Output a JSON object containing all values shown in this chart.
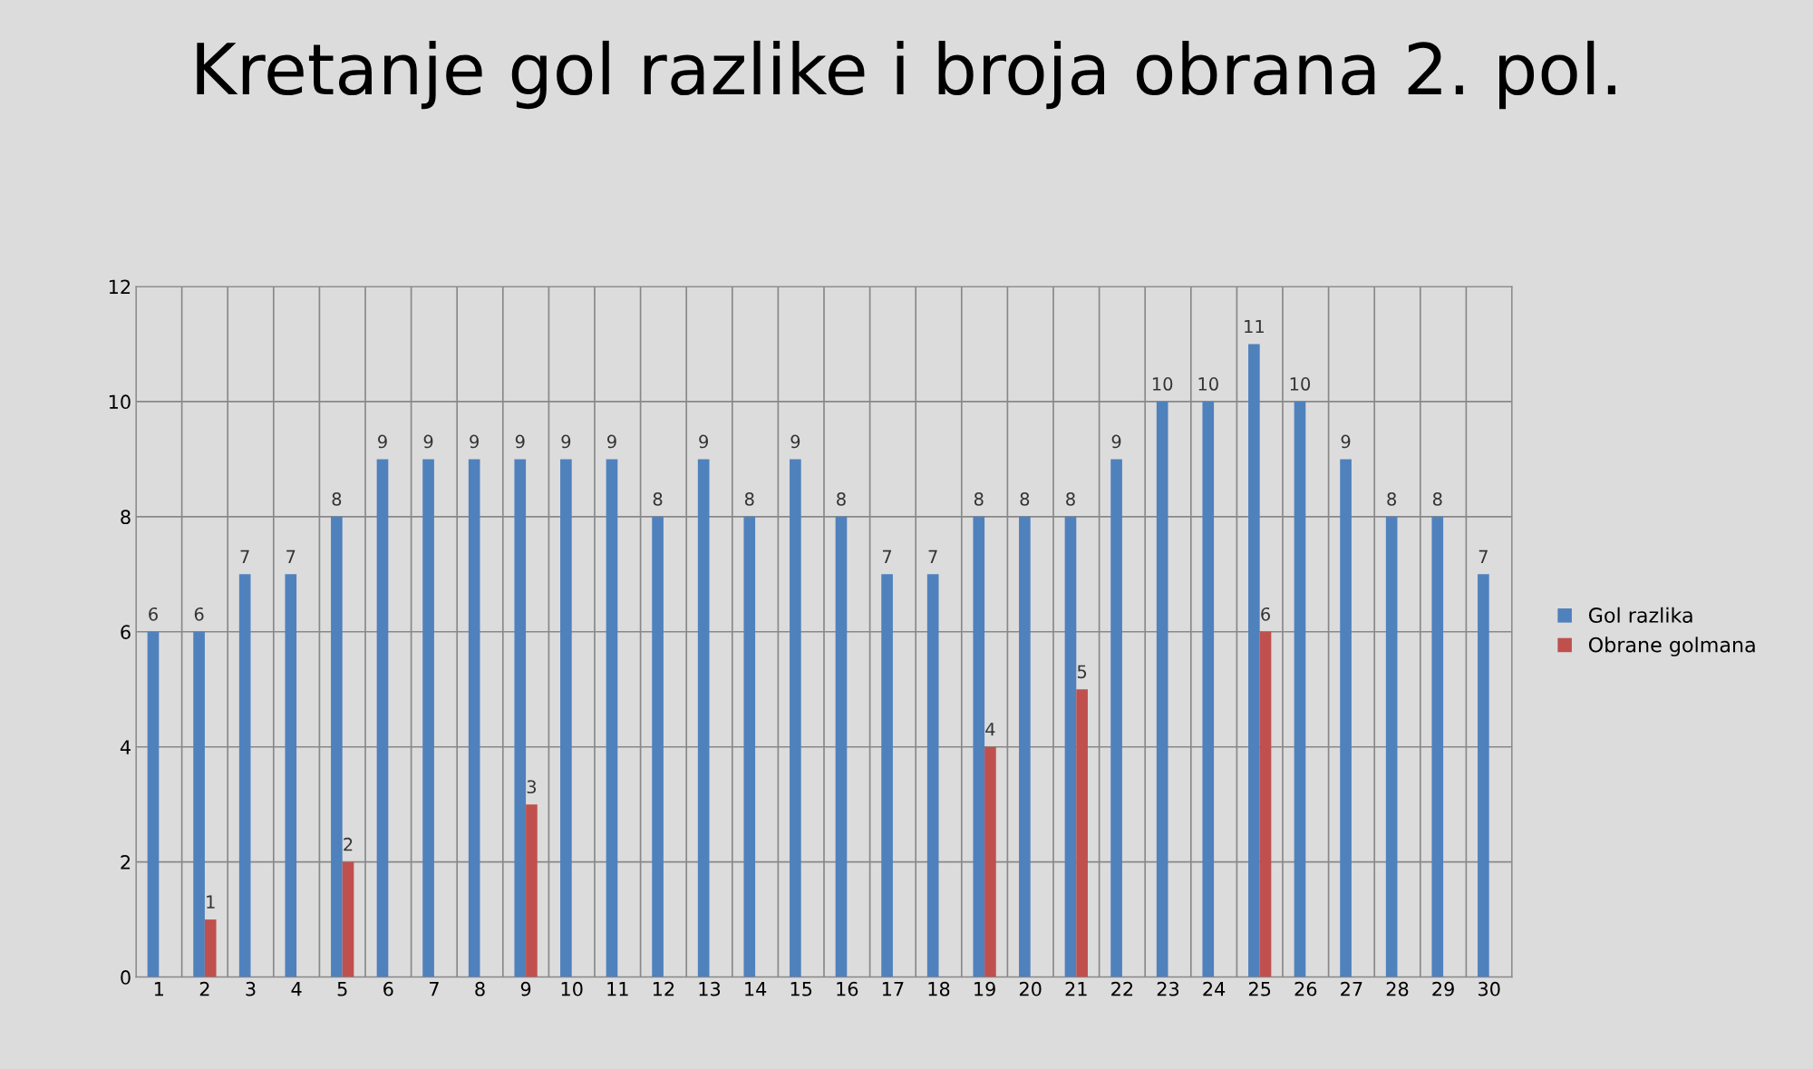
{
  "chart_data": {
    "type": "bar",
    "title": "Kretanje gol razlike i broja obrana 2. pol.",
    "categories": [
      "1",
      "2",
      "3",
      "4",
      "5",
      "6",
      "7",
      "8",
      "9",
      "10",
      "11",
      "12",
      "13",
      "14",
      "15",
      "16",
      "17",
      "18",
      "19",
      "20",
      "21",
      "22",
      "23",
      "24",
      "25",
      "26",
      "27",
      "28",
      "29",
      "30"
    ],
    "series": [
      {
        "name": "Gol razlika",
        "color": "#4f81bd",
        "values": [
          6,
          6,
          7,
          7,
          8,
          9,
          9,
          9,
          9,
          9,
          9,
          8,
          9,
          8,
          9,
          8,
          7,
          7,
          8,
          8,
          8,
          9,
          10,
          10,
          11,
          10,
          9,
          8,
          8,
          7
        ]
      },
      {
        "name": "Obrane golmana",
        "color": "#c0504d",
        "values": [
          null,
          1,
          null,
          null,
          2,
          null,
          null,
          null,
          3,
          null,
          null,
          null,
          null,
          null,
          null,
          null,
          null,
          null,
          4,
          null,
          5,
          null,
          null,
          null,
          6,
          null,
          null,
          null,
          null,
          null
        ]
      }
    ],
    "ylim": [
      0,
      12
    ],
    "yticks": [
      0,
      2,
      4,
      6,
      8,
      10,
      12
    ],
    "grid": true,
    "legend": "right",
    "data_labels": true
  }
}
